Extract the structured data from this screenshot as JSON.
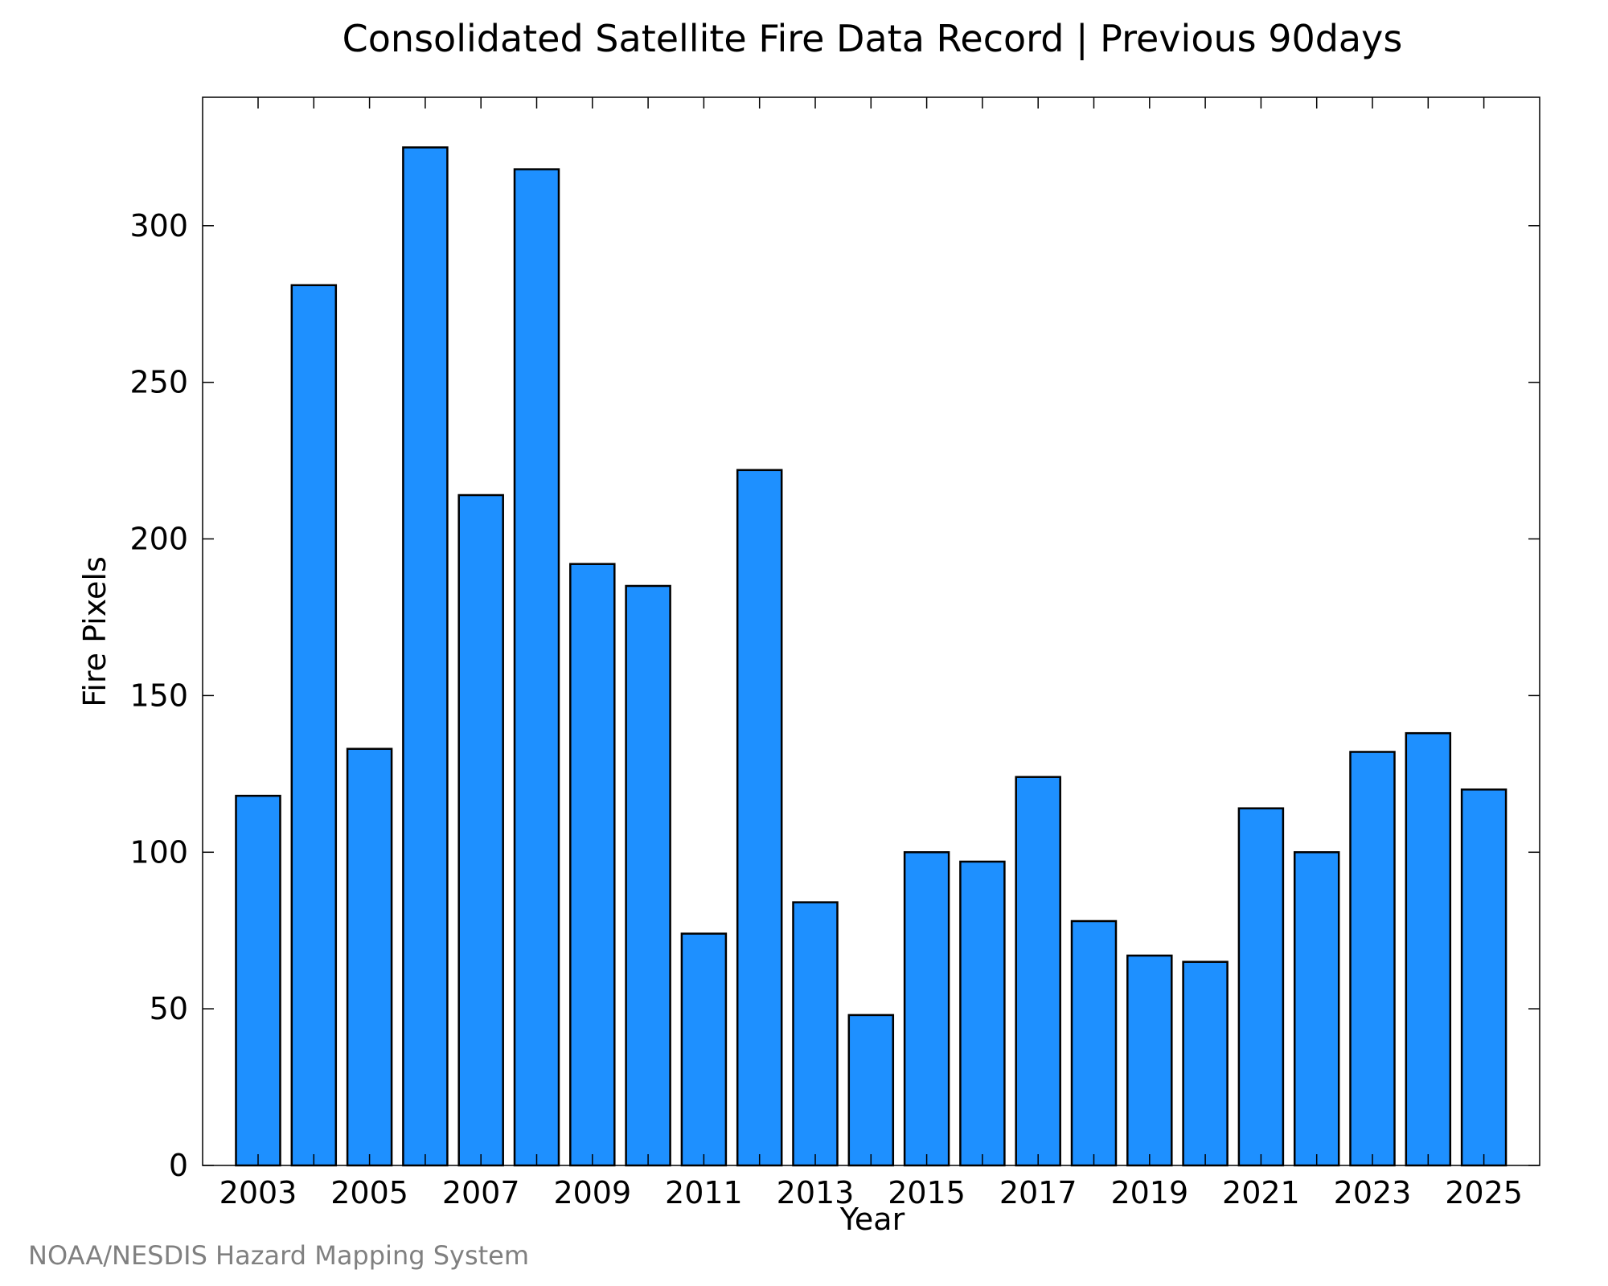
{
  "chart_data": {
    "type": "bar",
    "title": "Consolidated Satellite Fire Data Record | Previous 90days",
    "xlabel": "Year",
    "ylabel": "Fire Pixels",
    "categories": [
      "2003",
      "2004",
      "2005",
      "2006",
      "2007",
      "2008",
      "2009",
      "2010",
      "2011",
      "2012",
      "2013",
      "2014",
      "2015",
      "2016",
      "2017",
      "2018",
      "2019",
      "2020",
      "2021",
      "2022",
      "2023",
      "2024",
      "2025"
    ],
    "values": [
      118,
      281,
      133,
      325,
      214,
      318,
      192,
      185,
      74,
      222,
      84,
      48,
      100,
      97,
      124,
      78,
      67,
      65,
      114,
      100,
      132,
      138,
      120
    ],
    "ylim": [
      0,
      341
    ],
    "yticks": [
      "0",
      "50",
      "100",
      "150",
      "200",
      "250",
      "300"
    ],
    "xtick_labels": [
      "2003",
      "2005",
      "2007",
      "2009",
      "2011",
      "2013",
      "2015",
      "2017",
      "2019",
      "2021",
      "2023",
      "2025"
    ],
    "grid": false,
    "legend": "none",
    "colors": {
      "bar_fill": "#1e90ff",
      "bar_edge": "#000000",
      "credit": "#808080"
    }
  },
  "credit": "NOAA/NESDIS Hazard Mapping System"
}
